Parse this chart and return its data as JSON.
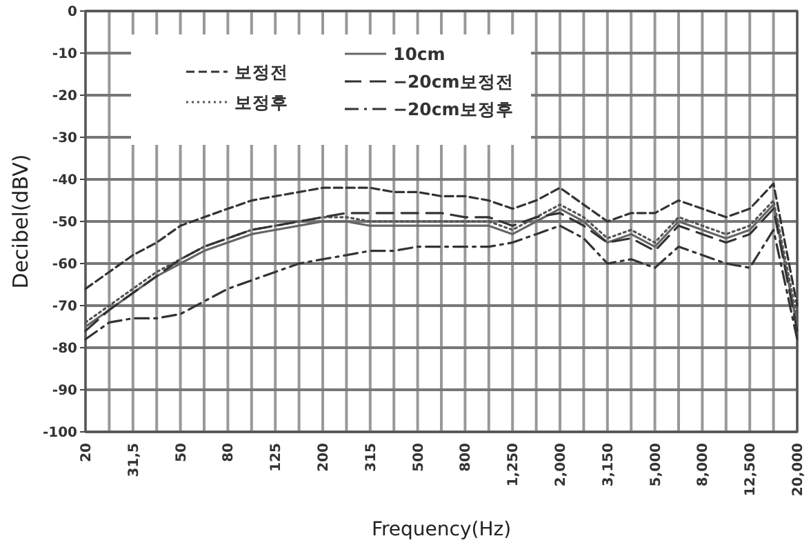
{
  "chart_data": {
    "type": "line",
    "xlabel": "Frequency(Hz)",
    "ylabel": "Decibel(dBV)",
    "categories": [
      "20",
      null,
      "31,5",
      null,
      "50",
      null,
      "80",
      null,
      "125",
      null,
      "200",
      null,
      "315",
      null,
      "500",
      null,
      "800",
      null,
      "1,250",
      null,
      "2,000",
      null,
      "3,150",
      null,
      "5,000",
      null,
      "8,000",
      null,
      "12,500",
      null,
      "20,000"
    ],
    "ylim": [
      -100,
      0
    ],
    "yticks": [
      -100,
      -90,
      -80,
      -70,
      -60,
      -50,
      -40,
      -30,
      -20,
      -10,
      0
    ],
    "grid": true,
    "legend": "top",
    "marker": "none",
    "series": [
      {
        "name": "보정전",
        "color": "#333333",
        "line_style": "dashed",
        "values": [
          -66,
          -62,
          -58,
          -55,
          -51,
          -49,
          -47,
          -45,
          -44,
          -43,
          -42,
          -42,
          -42,
          -43,
          -43,
          -44,
          -44,
          -45,
          -47,
          -45,
          -42,
          -46,
          -50,
          -48,
          -48,
          -45,
          -47,
          -49,
          -47,
          -41,
          -70
        ]
      },
      {
        "name": "보정후",
        "color": "#555555",
        "line_style": "dotted",
        "values": [
          -74,
          -70,
          -66,
          -62,
          -59,
          -56,
          -54,
          -52,
          -51,
          -50,
          -49,
          -49,
          -50,
          -50,
          -50,
          -50,
          -50,
          -50,
          -52,
          -49,
          -46,
          -49,
          -54,
          -52,
          -55,
          -49,
          -51,
          -53,
          -51,
          -45,
          -73
        ]
      },
      {
        "name": "10cm",
        "color": "#666666",
        "line_style": "solid",
        "values": [
          -75,
          -71,
          -67,
          -63,
          -60,
          -57,
          -55,
          -53,
          -52,
          -51,
          -50,
          -50,
          -51,
          -51,
          -51,
          -51,
          -51,
          -51,
          -53,
          -50,
          -47,
          -50,
          -55,
          -53,
          -56,
          -50,
          -52,
          -54,
          -52,
          -46,
          -75
        ]
      },
      {
        "name": "−20cm보정전",
        "color": "#333333",
        "line_style": "longdash",
        "values": [
          -76,
          -71,
          -67,
          -63,
          -59,
          -56,
          -54,
          -52,
          -51,
          -50,
          -49,
          -48,
          -48,
          -48,
          -48,
          -48,
          -49,
          -49,
          -51,
          -49,
          -48,
          -51,
          -55,
          -54,
          -57,
          -51,
          -53,
          -55,
          -53,
          -47,
          -76
        ]
      },
      {
        "name": "−20cm보정후",
        "color": "#333333",
        "line_style": "dashdot",
        "values": [
          -78,
          -74,
          -73,
          -73,
          -72,
          -69,
          -66,
          -64,
          -62,
          -60,
          -59,
          -58,
          -57,
          -57,
          -56,
          -56,
          -56,
          -56,
          -55,
          -53,
          -51,
          -54,
          -60,
          -59,
          -61,
          -56,
          -58,
          -60,
          -61,
          -52,
          -78
        ]
      }
    ]
  }
}
